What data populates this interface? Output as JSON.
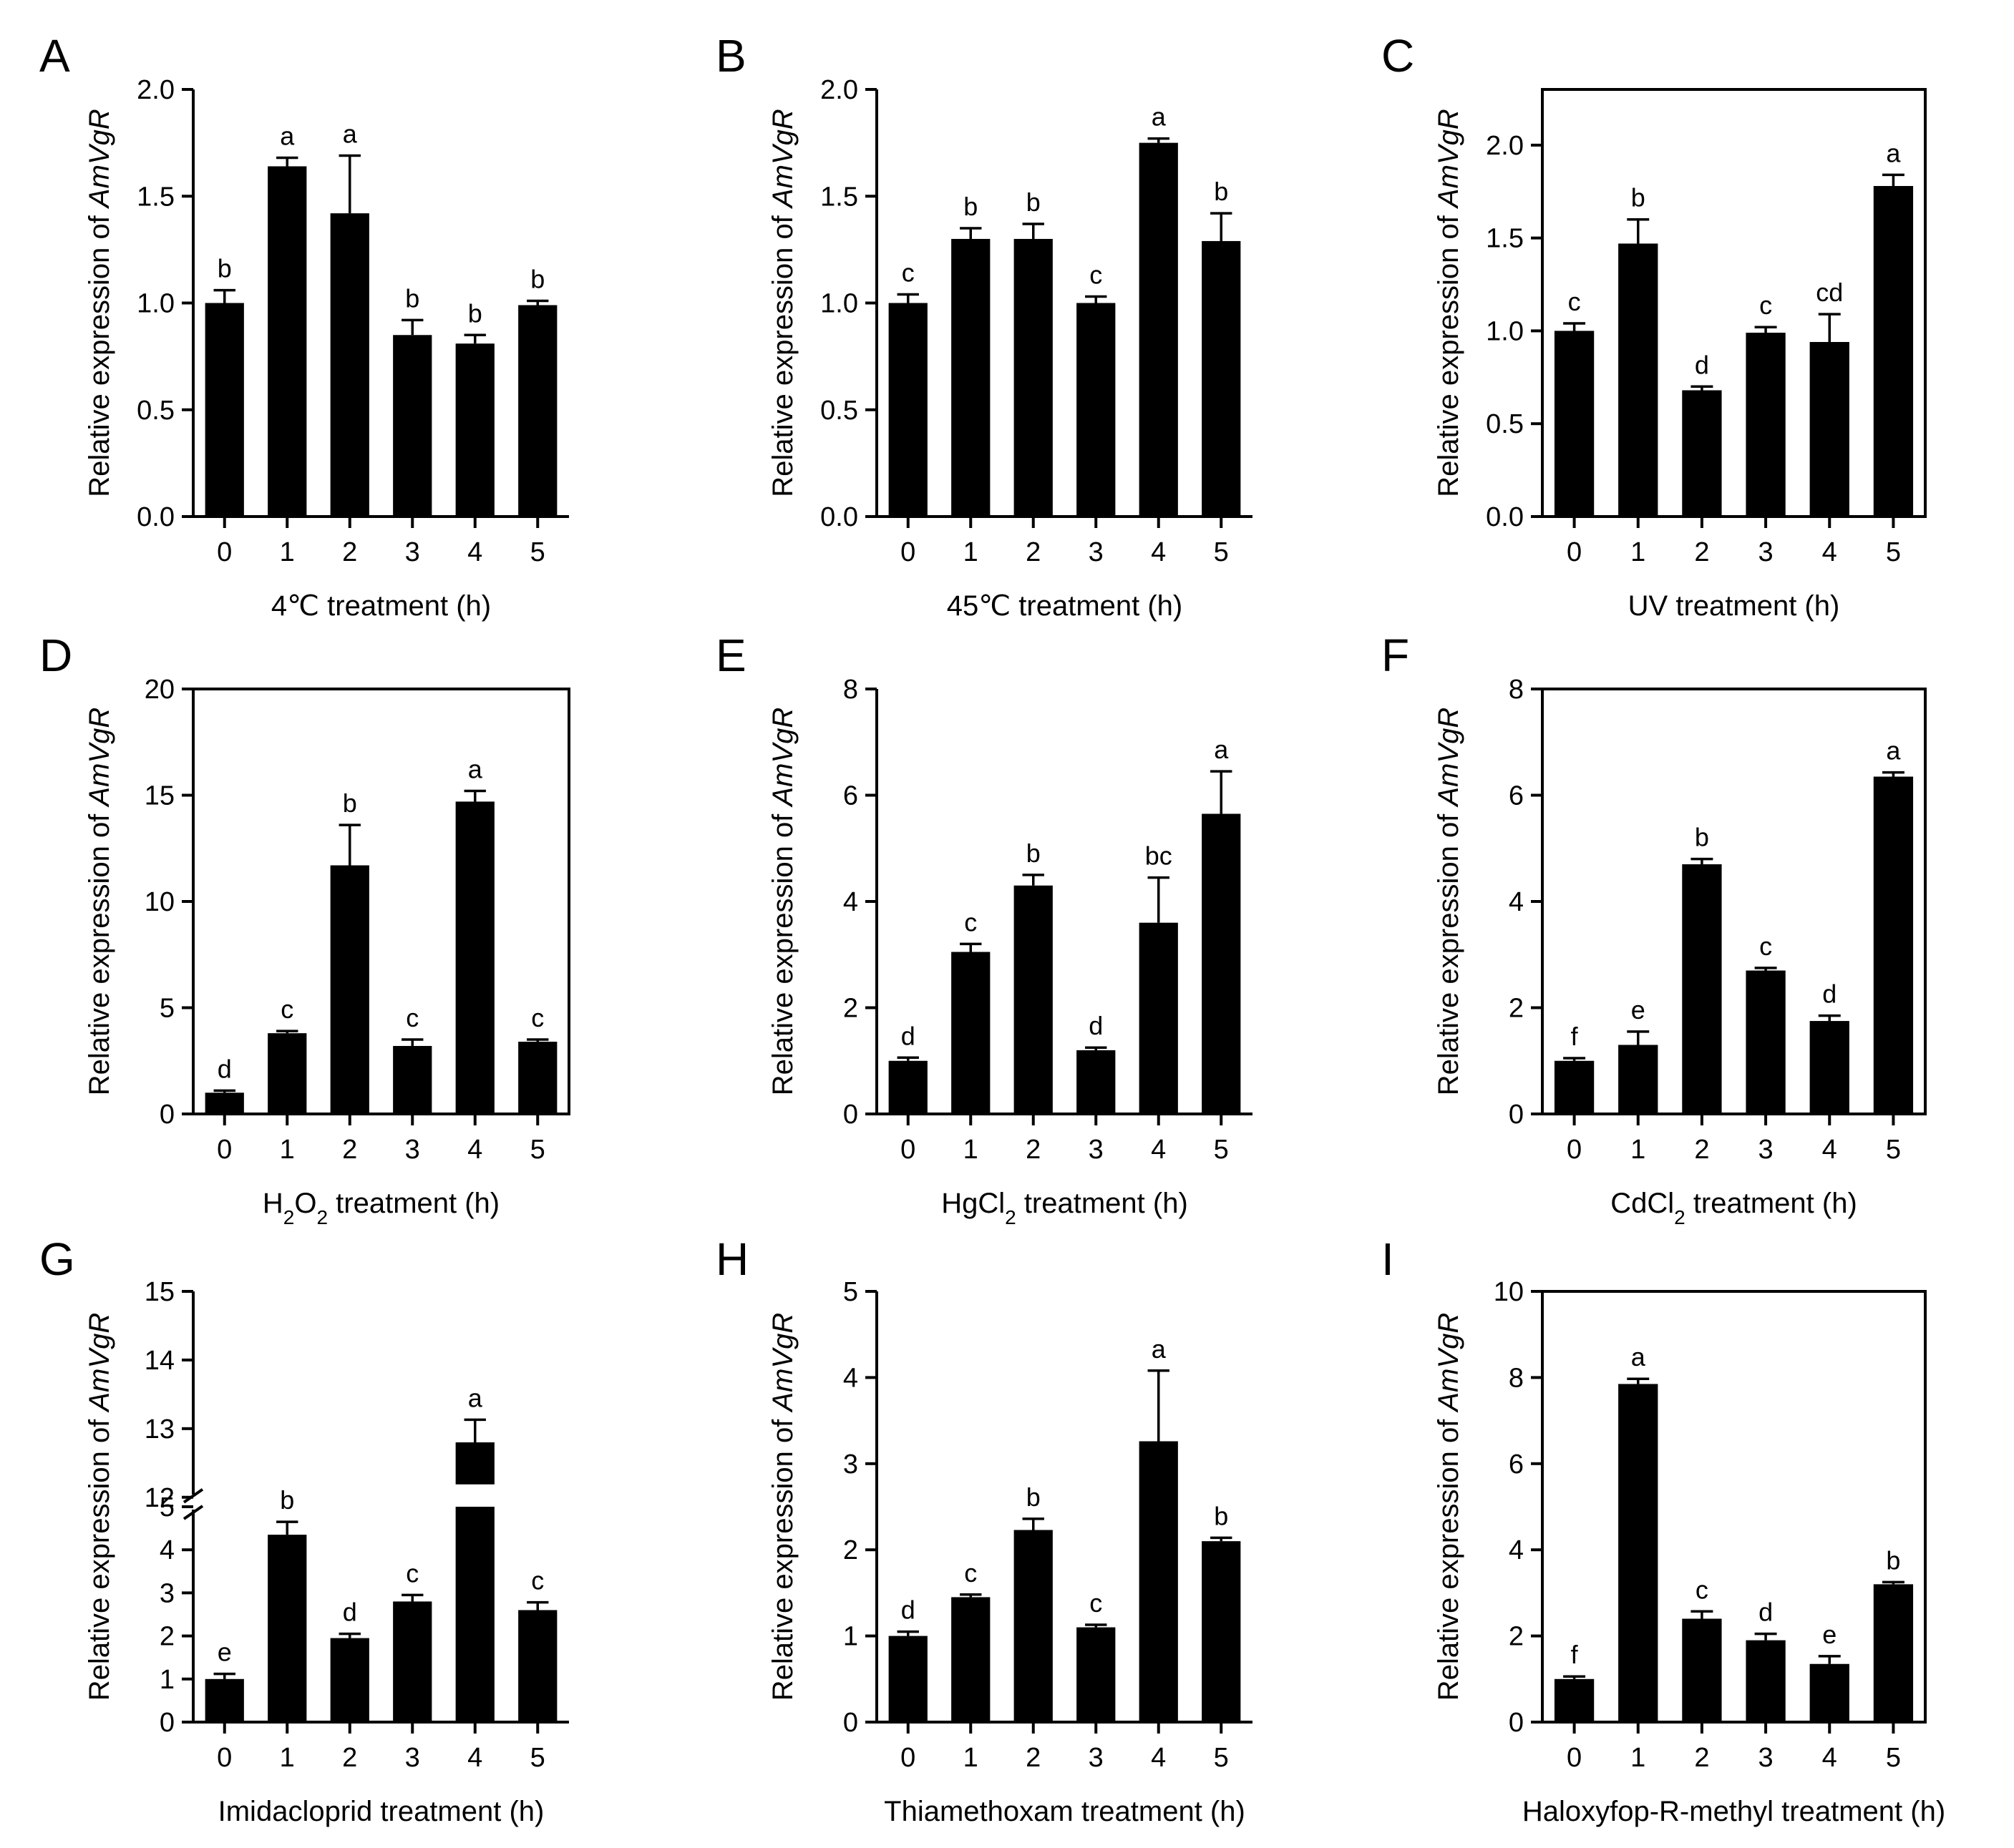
{
  "figure": {
    "panels": [
      {
        "letter": "A",
        "title": "",
        "ylabel_prefix": "Relative expression of ",
        "ylabel_gene": "AmVgR",
        "xlabel": "4℃ treatment (h)",
        "xlabel_parts": [
          {
            "t": "4℃ treatment (h)"
          }
        ]
      },
      {
        "letter": "B",
        "title": "",
        "ylabel_prefix": "Relative expression of ",
        "ylabel_gene": "AmVgR",
        "xlabel": "45℃ treatment (h)",
        "xlabel_parts": [
          {
            "t": "45℃ treatment (h)"
          }
        ]
      },
      {
        "letter": "C",
        "title": "",
        "ylabel_prefix": "Relative expression of ",
        "ylabel_gene": "AmVgR",
        "xlabel": "UV  treatment (h)",
        "xlabel_parts": [
          {
            "t": "UV  treatment (h)"
          }
        ]
      },
      {
        "letter": "D",
        "title": "",
        "ylabel_prefix": "Relative expression of ",
        "ylabel_gene": "AmVgR",
        "xlabel": "H2O2  treatment (h)",
        "xlabel_parts": [
          {
            "t": "H"
          },
          {
            "t": "2",
            "sub": true
          },
          {
            "t": "O"
          },
          {
            "t": "2",
            "sub": true
          },
          {
            "t": "  treatment (h)"
          }
        ]
      },
      {
        "letter": "E",
        "title": "",
        "ylabel_prefix": "Relative expression of ",
        "ylabel_gene": "AmVgR",
        "xlabel": "HgCl2 treatment (h)",
        "xlabel_parts": [
          {
            "t": "HgCl"
          },
          {
            "t": "2",
            "sub": true
          },
          {
            "t": " treatment (h)"
          }
        ]
      },
      {
        "letter": "F",
        "title": "",
        "ylabel_prefix": "Relative expression of ",
        "ylabel_gene": "AmVgR",
        "xlabel": "CdCl2  treatment (h)",
        "xlabel_parts": [
          {
            "t": "CdCl"
          },
          {
            "t": "2",
            "sub": true
          },
          {
            "t": "  treatment (h)"
          }
        ]
      },
      {
        "letter": "G",
        "title": "",
        "ylabel_prefix": "Relative expression of ",
        "ylabel_gene": "AmVgR",
        "xlabel": "Imidacloprid treatment (h)",
        "xlabel_parts": [
          {
            "t": "Imidacloprid treatment (h)"
          }
        ]
      },
      {
        "letter": "H",
        "title": "",
        "ylabel_prefix": "Relative expression of ",
        "ylabel_gene": "AmVgR",
        "xlabel": "Thiamethoxam treatment (h)",
        "xlabel_parts": [
          {
            "t": "Thiamethoxam treatment (h)"
          }
        ]
      },
      {
        "letter": "I",
        "title": "",
        "ylabel_prefix": "Relative expression of ",
        "ylabel_gene": "AmVgR",
        "xlabel": "Haloxyfop-R-methyl treatment (h)",
        "xlabel_parts": [
          {
            "t": "Haloxyfop-R-methyl treatment (h)"
          }
        ]
      }
    ]
  },
  "chart_data": [
    {
      "type": "bar",
      "panel": "A",
      "categories": [
        "0",
        "1",
        "2",
        "3",
        "4",
        "5"
      ],
      "values": [
        1.0,
        1.64,
        1.42,
        0.85,
        0.81,
        0.99
      ],
      "errors": [
        0.06,
        0.04,
        0.27,
        0.07,
        0.04,
        0.02
      ],
      "significance": [
        "b",
        "a",
        "a",
        "b",
        "b",
        "b"
      ],
      "ylim": [
        0,
        2.0
      ],
      "yticks": [
        0,
        0.5,
        1.0,
        1.5,
        2.0
      ],
      "ytick_labels": [
        "0.0",
        "0.5",
        "1.0",
        "1.5",
        "2.0"
      ],
      "xlabel": "4℃ treatment (h)",
      "ylabel": "Relative expression of AmVgR",
      "axes_style": "open"
    },
    {
      "type": "bar",
      "panel": "B",
      "categories": [
        "0",
        "1",
        "2",
        "3",
        "4",
        "5"
      ],
      "values": [
        1.0,
        1.3,
        1.3,
        1.0,
        1.75,
        1.29
      ],
      "errors": [
        0.04,
        0.05,
        0.07,
        0.03,
        0.02,
        0.13
      ],
      "significance": [
        "c",
        "b",
        "b",
        "c",
        "a",
        "b"
      ],
      "ylim": [
        0,
        2.0
      ],
      "yticks": [
        0,
        0.5,
        1.0,
        1.5,
        2.0
      ],
      "ytick_labels": [
        "0.0",
        "0.5",
        "1.0",
        "1.5",
        "2.0"
      ],
      "xlabel": "45℃ treatment (h)",
      "ylabel": "Relative expression of AmVgR",
      "axes_style": "open"
    },
    {
      "type": "bar",
      "panel": "C",
      "categories": [
        "0",
        "1",
        "2",
        "3",
        "4",
        "5"
      ],
      "values": [
        1.0,
        1.47,
        0.68,
        0.99,
        0.94,
        1.78
      ],
      "errors": [
        0.04,
        0.13,
        0.02,
        0.03,
        0.15,
        0.06
      ],
      "significance": [
        "c",
        "b",
        "d",
        "c",
        "cd",
        "a"
      ],
      "ylim": [
        0,
        2.3
      ],
      "yticks": [
        0,
        0.5,
        1.0,
        1.5,
        2.0
      ],
      "ytick_labels": [
        "0.0",
        "0.5",
        "1.0",
        "1.5",
        "2.0"
      ],
      "xlabel": "UV  treatment (h)",
      "ylabel": "Relative expression of AmVgR",
      "axes_style": "box"
    },
    {
      "type": "bar",
      "panel": "D",
      "categories": [
        "0",
        "1",
        "2",
        "3",
        "4",
        "5"
      ],
      "values": [
        1.0,
        3.8,
        11.7,
        3.2,
        14.7,
        3.4
      ],
      "errors": [
        0.1,
        0.1,
        1.9,
        0.3,
        0.5,
        0.1
      ],
      "significance": [
        "d",
        "c",
        "b",
        "c",
        "a",
        "c"
      ],
      "ylim": [
        0,
        20
      ],
      "yticks": [
        0,
        5,
        10,
        15,
        20
      ],
      "ytick_labels": [
        "0",
        "5",
        "10",
        "15",
        "20"
      ],
      "xlabel": "H2O2  treatment (h)",
      "ylabel": "Relative expression of AmVgR",
      "axes_style": "box"
    },
    {
      "type": "bar",
      "panel": "E",
      "categories": [
        "0",
        "1",
        "2",
        "3",
        "4",
        "5"
      ],
      "values": [
        1.0,
        3.05,
        4.3,
        1.2,
        3.6,
        5.65
      ],
      "errors": [
        0.06,
        0.15,
        0.2,
        0.05,
        0.85,
        0.8
      ],
      "significance": [
        "d",
        "c",
        "b",
        "d",
        "bc",
        "a"
      ],
      "ylim": [
        0,
        8
      ],
      "yticks": [
        0,
        2,
        4,
        6,
        8
      ],
      "ytick_labels": [
        "0",
        "2",
        "4",
        "6",
        "8"
      ],
      "xlabel": "HgCl2 treatment (h)",
      "ylabel": "Relative expression of AmVgR",
      "axes_style": "open"
    },
    {
      "type": "bar",
      "panel": "F",
      "categories": [
        "0",
        "1",
        "2",
        "3",
        "4",
        "5"
      ],
      "values": [
        1.0,
        1.3,
        4.7,
        2.7,
        1.75,
        6.35
      ],
      "errors": [
        0.05,
        0.25,
        0.1,
        0.05,
        0.1,
        0.08
      ],
      "significance": [
        "f",
        "e",
        "b",
        "c",
        "d",
        "a"
      ],
      "ylim": [
        0,
        8
      ],
      "yticks": [
        0,
        2,
        4,
        6,
        8
      ],
      "ytick_labels": [
        "0",
        "2",
        "4",
        "6",
        "8"
      ],
      "xlabel": "CdCl2  treatment (h)",
      "ylabel": "Relative expression of AmVgR",
      "axes_style": "box"
    },
    {
      "type": "bar",
      "panel": "G",
      "categories": [
        "0",
        "1",
        "2",
        "3",
        "4",
        "5"
      ],
      "values": [
        1.0,
        4.35,
        1.95,
        2.8,
        12.8,
        2.6
      ],
      "errors": [
        0.12,
        0.3,
        0.1,
        0.15,
        0.33,
        0.18
      ],
      "significance": [
        "e",
        "b",
        "d",
        "c",
        "a",
        "c"
      ],
      "ylim": [
        0,
        15
      ],
      "yaxis_break": [
        5,
        12
      ],
      "yticks": [
        0,
        1,
        2,
        3,
        4,
        5,
        12,
        13,
        14,
        15
      ],
      "ytick_labels": [
        "0",
        "1",
        "2",
        "3",
        "4",
        "5",
        "12",
        "13",
        "14",
        "15"
      ],
      "xlabel": "Imidacloprid treatment (h)",
      "ylabel": "Relative expression of AmVgR",
      "axes_style": "open"
    },
    {
      "type": "bar",
      "panel": "H",
      "categories": [
        "0",
        "1",
        "2",
        "3",
        "4",
        "5"
      ],
      "values": [
        1.0,
        1.45,
        2.23,
        1.1,
        3.26,
        2.1
      ],
      "errors": [
        0.05,
        0.03,
        0.13,
        0.03,
        0.82,
        0.04
      ],
      "significance": [
        "d",
        "c",
        "b",
        "c",
        "a",
        "b"
      ],
      "ylim": [
        0,
        5
      ],
      "yticks": [
        0,
        1,
        2,
        3,
        4,
        5
      ],
      "ytick_labels": [
        "0",
        "1",
        "2",
        "3",
        "4",
        "5"
      ],
      "xlabel": "Thiamethoxam treatment (h)",
      "ylabel": "Relative expression of AmVgR",
      "axes_style": "open"
    },
    {
      "type": "bar",
      "panel": "I",
      "categories": [
        "0",
        "1",
        "2",
        "3",
        "4",
        "5"
      ],
      "values": [
        1.0,
        7.85,
        2.4,
        1.9,
        1.35,
        3.2
      ],
      "errors": [
        0.06,
        0.12,
        0.17,
        0.15,
        0.18,
        0.05
      ],
      "significance": [
        "f",
        "a",
        "c",
        "d",
        "e",
        "b"
      ],
      "ylim": [
        0,
        10
      ],
      "yticks": [
        0,
        2,
        4,
        6,
        8,
        10
      ],
      "ytick_labels": [
        "0",
        "2",
        "4",
        "6",
        "8",
        "10"
      ],
      "xlabel": "Haloxyfop-R-methyl treatment (h)",
      "ylabel": "Relative expression of AmVgR",
      "axes_style": "box"
    }
  ]
}
